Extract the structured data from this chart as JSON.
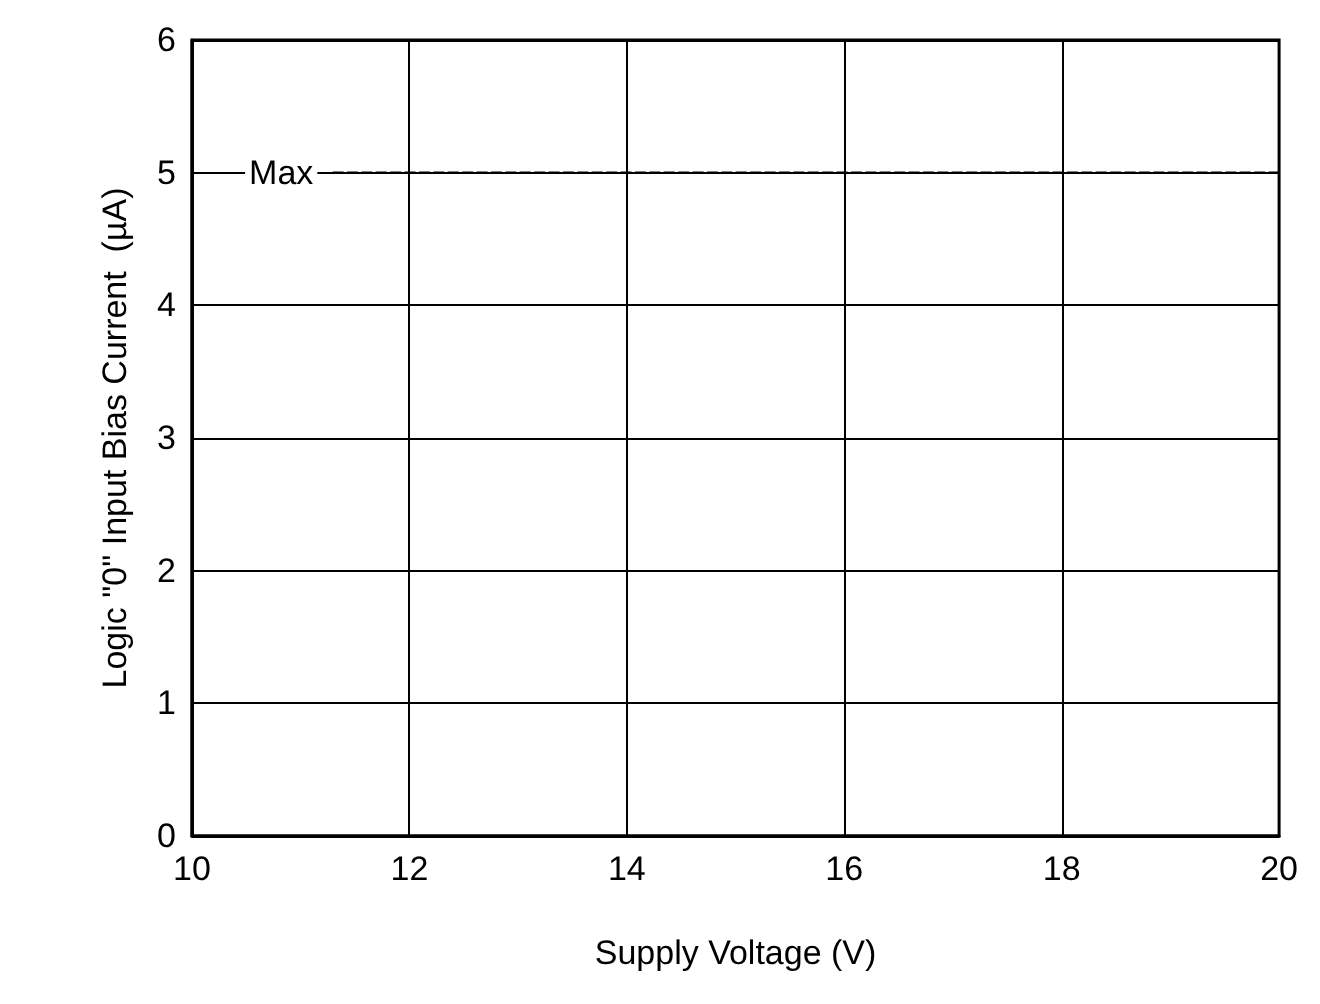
{
  "chart_data": {
    "type": "line",
    "xlabel": "Supply Voltage (V)",
    "ylabel": "Logic \"0\" Input Bias Current  (µA)",
    "series": [
      {
        "name": "Max",
        "color": "#000000",
        "x": [
          11.3,
          20
        ],
        "values": [
          5,
          5
        ],
        "line_style": "dashed"
      }
    ],
    "xlim": [
      10,
      20
    ],
    "xticks": [
      10,
      12,
      14,
      16,
      18,
      20
    ],
    "ylim": [
      0,
      6
    ],
    "yticks": [
      0,
      1,
      2,
      3,
      4,
      5,
      6
    ],
    "grid": true,
    "marker": "none",
    "legend": false
  }
}
